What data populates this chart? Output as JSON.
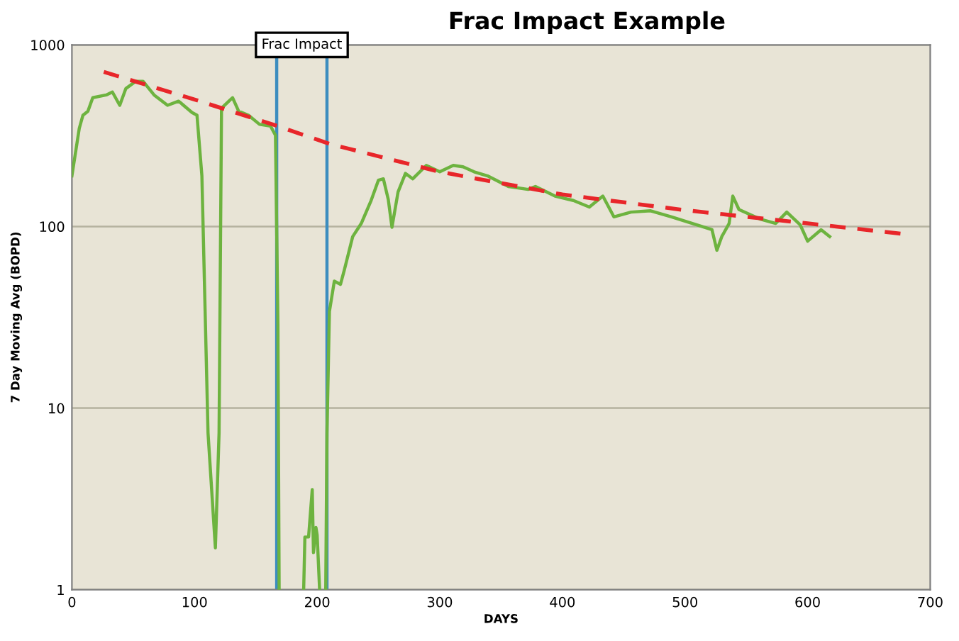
{
  "chart_data": {
    "type": "line",
    "title": "Frac Impact Example",
    "xlabel": "DAYS",
    "ylabel": "7 Day Moving Avg (BOPD)",
    "log": "y",
    "xlim": [
      0,
      700
    ],
    "ylim": [
      1,
      1000
    ],
    "xticks": [
      0,
      100,
      200,
      300,
      400,
      500,
      600,
      700
    ],
    "yticks": [
      1,
      10,
      100,
      1000
    ],
    "grid": "y",
    "legend": false,
    "marker": "none",
    "series": [
      {
        "color": "#6db33f",
        "line_style": "solid",
        "x": [
          0,
          6,
          9,
          13,
          17,
          28,
          33,
          39,
          44,
          52,
          58,
          67,
          78,
          87,
          98,
          102,
          106,
          111,
          117,
          120,
          122,
          128,
          131,
          136,
          144,
          153,
          162,
          166,
          168,
          169,
          180,
          189,
          190,
          193,
          196,
          197,
          199,
          200,
          202,
          205,
          207,
          208,
          210,
          214,
          219,
          222,
          229,
          236,
          244,
          250,
          254,
          258,
          261,
          266,
          272,
          278,
          289,
          300,
          311,
          319,
          328,
          339,
          350,
          356,
          372,
          378,
          394,
          409,
          422,
          433,
          442,
          456,
          472,
          489,
          522,
          526,
          530,
          536,
          539,
          544,
          561,
          574,
          583,
          594,
          600,
          611,
          618
        ],
        "values": [
          190,
          347,
          410,
          431,
          512,
          530,
          550,
          465,
          575,
          630,
          630,
          530,
          465,
          490,
          424,
          410,
          190,
          7.3,
          1.7,
          7.3,
          448,
          490,
          512,
          431,
          410,
          365,
          357,
          318,
          29,
          1,
          null,
          1,
          1.95,
          1.95,
          3.56,
          1.6,
          2.2,
          2.0,
          1,
          null,
          1,
          7.3,
          34,
          50,
          48,
          57,
          88,
          104,
          139,
          180,
          183,
          141,
          99,
          155,
          196,
          183,
          217,
          200,
          217,
          213,
          200,
          190,
          174,
          166,
          160,
          166,
          147,
          139,
          128,
          147,
          113,
          120,
          122,
          113,
          96,
          74,
          88,
          104,
          147,
          124,
          110,
          104,
          120,
          102,
          83,
          96,
          88
        ]
      },
      {
        "color": "#e8262a",
        "line_style": "dashed",
        "x": [
          26,
          100,
          168,
          210,
          300,
          400,
          500,
          600,
          678
        ],
        "values": [
          710,
          500,
          357,
          285,
          200,
          150,
          123,
          104,
          91
        ]
      }
    ],
    "ref_lines": [
      {
        "axis": "x",
        "value": 167,
        "color": "#3c8dbf"
      },
      {
        "axis": "x",
        "value": 208,
        "color": "#3c8dbf"
      }
    ],
    "annotations": [
      "Frac Impact"
    ]
  }
}
